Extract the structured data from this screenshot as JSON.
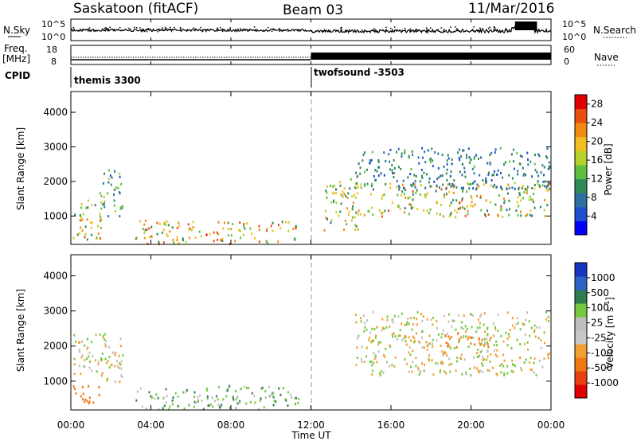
{
  "header": {
    "station": "Saskatoon (fitACF)",
    "beam": "Beam 03",
    "date": "11/Mar/2016"
  },
  "top_panels": {
    "nsky_label": "N.Sky",
    "nsearch_label": "N.Search",
    "noise_ticks_left": [
      "10^5",
      "10^0"
    ],
    "noise_ticks_right": [
      "10^5",
      "10^0"
    ],
    "freq_label_line1": "Freq.",
    "freq_label_line2": "[MHz]",
    "freq_ticks": [
      "18",
      "8"
    ],
    "nave_label": "Nave",
    "nave_ticks": [
      "60",
      "0"
    ],
    "cpid_label": "CPID",
    "cpid_1": "themis 3300",
    "cpid_2": "twofsound -3503"
  },
  "x_axis": {
    "label": "Time UT",
    "ticks": [
      "00:00",
      "04:00",
      "08:00",
      "12:00",
      "16:00",
      "20:00",
      "00:00"
    ],
    "range_hours": [
      0,
      24
    ]
  },
  "colors": {
    "power_scale": [
      "#0000ff",
      "#1f4fd0",
      "#2c6fa0",
      "#2e8b57",
      "#5fbf3f",
      "#b8d12c",
      "#f0c020",
      "#f08a10",
      "#e85010",
      "#e00000"
    ],
    "velocity_scale": [
      "#1636c0",
      "#2c62c8",
      "#2e7d4f",
      "#74c83c",
      "#bebebe",
      "#c8c8c8",
      "#f0a030",
      "#f07810",
      "#e84010",
      "#e00000"
    ]
  },
  "chart_data": [
    {
      "type": "heatmap",
      "title": "Power",
      "ylabel": "Slant Range [km]",
      "ylim": [
        180,
        4600
      ],
      "yticks": [
        "1000",
        "2000",
        "3000",
        "4000"
      ],
      "colorbar": {
        "label": "Power [dB]",
        "ticks": [
          "4",
          "8",
          "12",
          "16",
          "20",
          "24",
          "28"
        ],
        "range": [
          0,
          30
        ]
      },
      "regions": [
        {
          "t_start": 0.1,
          "t_end": 1.6,
          "range_low": 300,
          "range_high": 1500,
          "peak_db": 24
        },
        {
          "t_start": 1.4,
          "t_end": 2.6,
          "range_low": 1000,
          "range_high": 2400,
          "peak_db": 16
        },
        {
          "t_start": 3.2,
          "t_end": 11.4,
          "range_low": 180,
          "range_high": 900,
          "peak_db": 26
        },
        {
          "t_start": 12.6,
          "t_end": 14.4,
          "range_low": 600,
          "range_high": 2200,
          "peak_db": 22
        },
        {
          "t_start": 14.2,
          "t_end": 23.9,
          "range_low": 1000,
          "range_high": 2000,
          "peak_db": 24
        },
        {
          "t_start": 14.2,
          "t_end": 23.9,
          "range_low": 1800,
          "range_high": 3000,
          "peak_db": 12
        }
      ]
    },
    {
      "type": "heatmap",
      "title": "Velocity",
      "ylabel": "Slant Range [km]",
      "ylim": [
        180,
        4600
      ],
      "yticks": [
        "1000",
        "2000",
        "3000",
        "4000"
      ],
      "colorbar": {
        "label": "Velocity [m s^-1]",
        "ticks": [
          "1000",
          "500",
          "100",
          "25",
          "-25",
          "-100",
          "-500",
          "-1000"
        ]
      },
      "regions": [
        {
          "t_start": 0.1,
          "t_end": 1.6,
          "range_low": 400,
          "range_high": 900,
          "velocity": -200
        },
        {
          "t_start": 0.1,
          "t_end": 2.6,
          "range_low": 1000,
          "range_high": 2400,
          "velocity": 0
        },
        {
          "t_start": 3.2,
          "t_end": 11.4,
          "range_low": 180,
          "range_high": 900,
          "velocity": 80
        },
        {
          "t_start": 14.2,
          "t_end": 23.9,
          "range_low": 1200,
          "range_high": 3000,
          "velocity": 0
        },
        {
          "t_start": 18.5,
          "t_end": 21.0,
          "range_low": 2000,
          "range_high": 2400,
          "velocity": -300
        }
      ]
    }
  ]
}
